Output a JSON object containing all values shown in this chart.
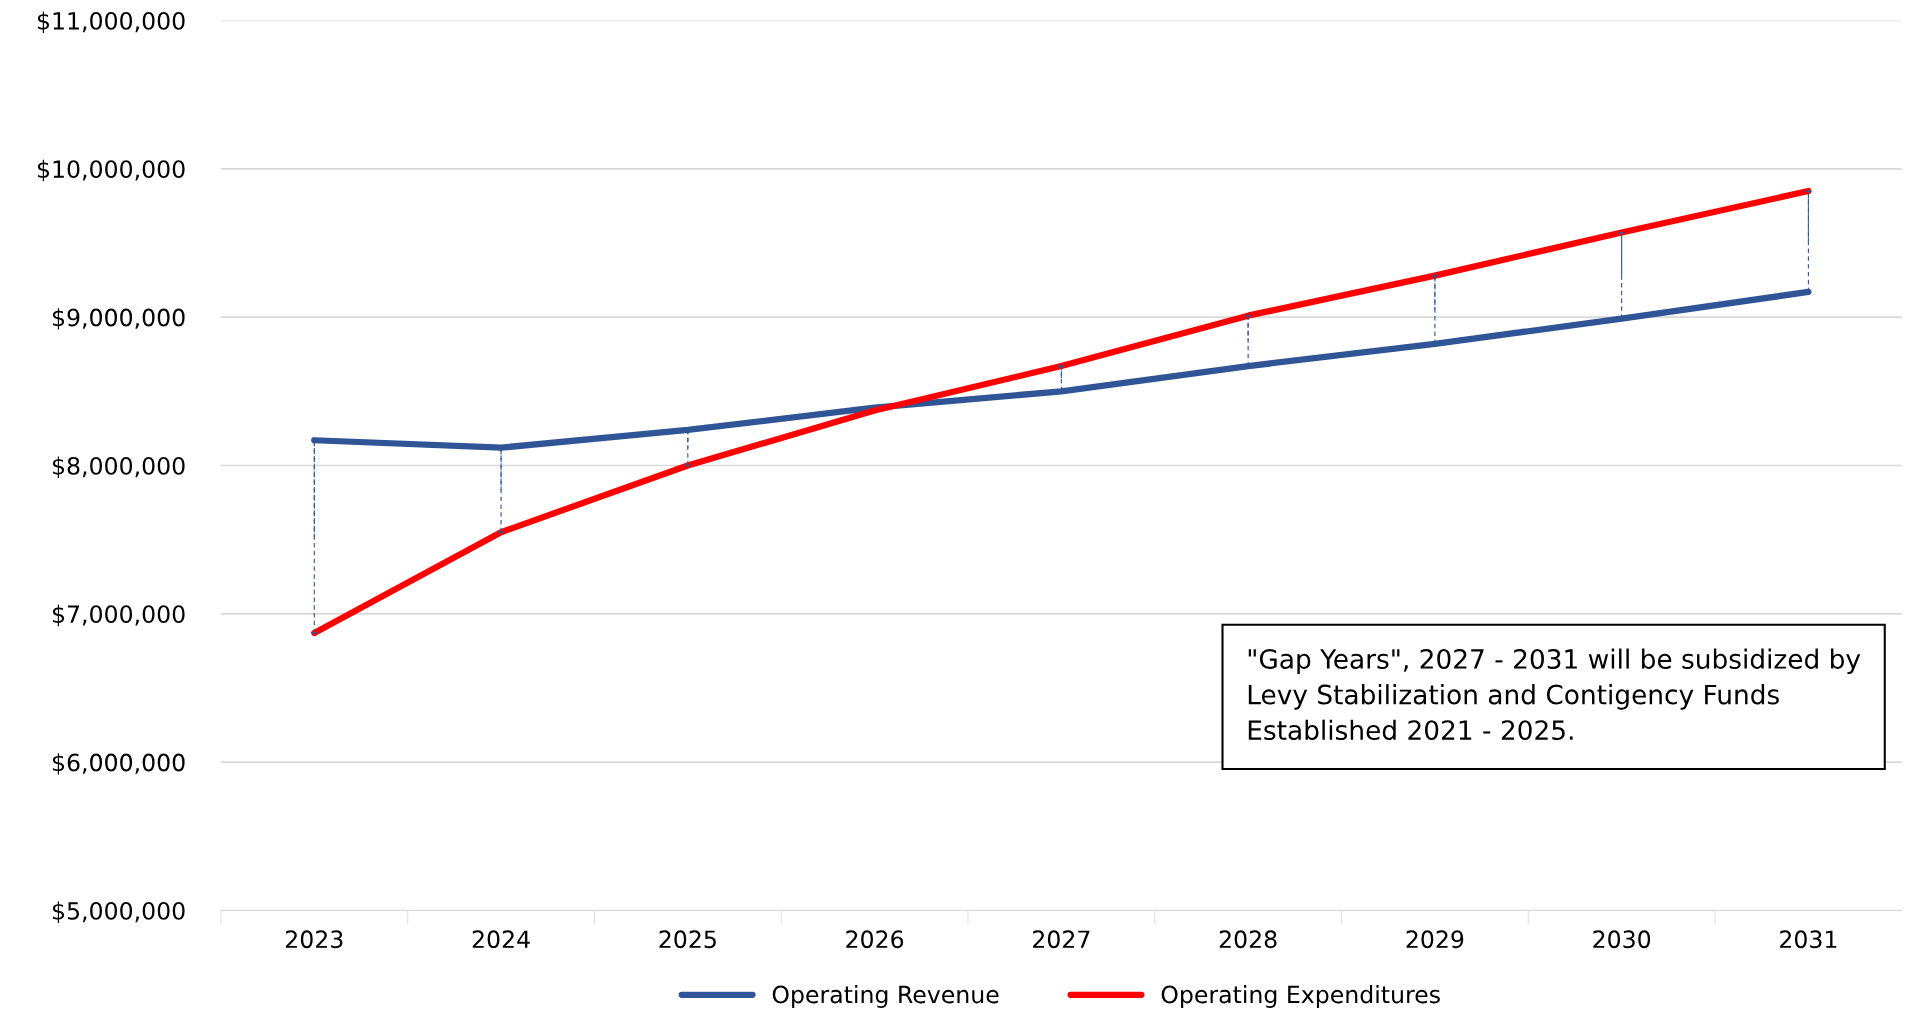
{
  "chart_data": {
    "type": "line",
    "categories": [
      "2023",
      "2024",
      "2025",
      "2026",
      "2027",
      "2028",
      "2029",
      "2030",
      "2031"
    ],
    "series": [
      {
        "name": "Operating Revenue",
        "color": "#2f5597",
        "values": [
          8170000,
          8120000,
          8240000,
          8390000,
          8500000,
          8670000,
          8820000,
          8990000,
          9170000
        ],
        "errors": [
          [
            6870000,
            8170000
          ],
          [
            7550000,
            8120000
          ],
          [
            8000000,
            8240000
          ],
          null,
          [
            8500000,
            8670000
          ],
          [
            8670000,
            9010000
          ],
          [
            8820000,
            9280000
          ],
          [
            8990000,
            9570000
          ],
          [
            9170000,
            9850000
          ]
        ]
      },
      {
        "name": "Operating Expenditures",
        "color": "#ff0000",
        "values": [
          6870000,
          7550000,
          8000000,
          8370000,
          8670000,
          9010000,
          9280000,
          9570000,
          9850000
        ]
      }
    ],
    "ylim": [
      5000000,
      11000000
    ],
    "yticks": [
      {
        "value": 5000000,
        "label": "$5,000,000"
      },
      {
        "value": 6000000,
        "label": "$6,000,000"
      },
      {
        "value": 7000000,
        "label": "$7,000,000"
      },
      {
        "value": 8000000,
        "label": "$8,000,000"
      },
      {
        "value": 9000000,
        "label": "$9,000,000"
      },
      {
        "value": 10000000,
        "label": "$10,000,000"
      },
      {
        "value": 11000000,
        "label": "$11,000,000"
      }
    ],
    "annotations": [
      "\"Gap Years\", 2027 - 2031 will be subsidized by\nLevy Stabilization and Contigency Funds\nEstablished 2021 - 2025."
    ],
    "grid": "y",
    "legend": "bottom",
    "marker": "none",
    "line_style": "solid"
  }
}
